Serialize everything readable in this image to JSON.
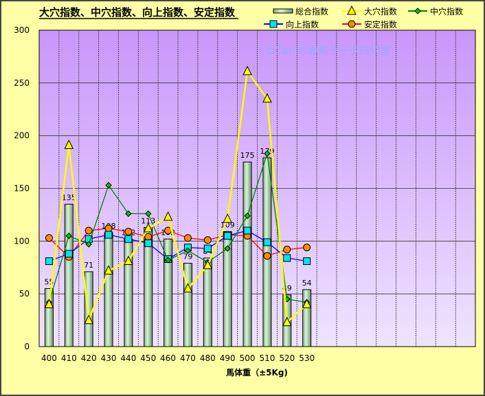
{
  "chart_data": {
    "type": "bar+line",
    "title": "大穴指数、中穴指数、向上指数、安定指数",
    "xlabel": "馬体重（±5Kg)",
    "ylabel": "",
    "ylim": [
      0,
      300
    ],
    "yticks": [
      0,
      50,
      100,
      150,
      200,
      250,
      300
    ],
    "grid": true,
    "legend": "top-right",
    "watermark": "©Caniの競馬データ研究室",
    "categories": [
      "400",
      "410",
      "420",
      "430",
      "440",
      "450",
      "460",
      "470",
      "480",
      "490",
      "500",
      "510",
      "520",
      "530"
    ],
    "empty_columns": 8,
    "bar_series": {
      "name": "総合指数",
      "values": [
        55,
        135,
        71,
        108,
        102,
        113,
        102,
        79,
        84,
        109,
        175,
        179,
        49,
        54
      ]
    },
    "series": [
      {
        "name": "大穴指数",
        "color": "#FFFF00",
        "marker": "triangle",
        "values": [
          40,
          191,
          25,
          72,
          81,
          112,
          123,
          55,
          77,
          121,
          261,
          235,
          23,
          40
        ]
      },
      {
        "name": "中穴指数",
        "color": "#008000",
        "marker": "diamond",
        "values": [
          42,
          105,
          97,
          153,
          126,
          126,
          82,
          91,
          80,
          93,
          124,
          183,
          45,
          42
        ]
      },
      {
        "name": "向上指数",
        "color": "#0000FF",
        "marker": "square",
        "values": [
          81,
          88,
          102,
          106,
          102,
          98,
          83,
          94,
          93,
          105,
          110,
          99,
          84,
          81
        ]
      },
      {
        "name": "安定指数",
        "color": "#FF0000",
        "marker": "circle",
        "values": [
          103,
          85,
          110,
          112,
          109,
          104,
          110,
          103,
          101,
          106,
          105,
          86,
          92,
          94
        ]
      }
    ]
  }
}
